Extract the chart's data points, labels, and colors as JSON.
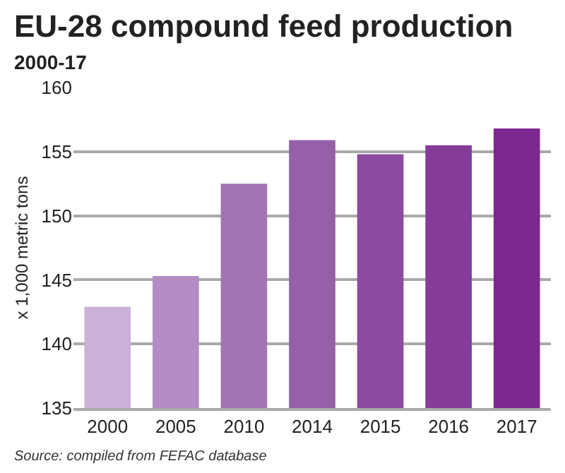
{
  "chart_data": {
    "type": "bar",
    "title": "EU-28 compound feed production",
    "subtitle": "2000-17",
    "ylabel": "x 1,000 metric tons",
    "categories": [
      "2000",
      "2005",
      "2010",
      "2014",
      "2015",
      "2016",
      "2017"
    ],
    "values": [
      142.9,
      145.3,
      152.5,
      155.9,
      154.8,
      155.5,
      156.8
    ],
    "colors": [
      "#c9b1d8",
      "#b28cc2",
      "#a374b2",
      "#9660a8",
      "#8c4aa0",
      "#853c99",
      "#7d2890"
    ],
    "ylim": [
      135,
      160
    ],
    "yticks": [
      135,
      140,
      145,
      150,
      155,
      160
    ],
    "grid": "y",
    "annotations": [
      "Source: compiled from FEFAC database"
    ]
  }
}
